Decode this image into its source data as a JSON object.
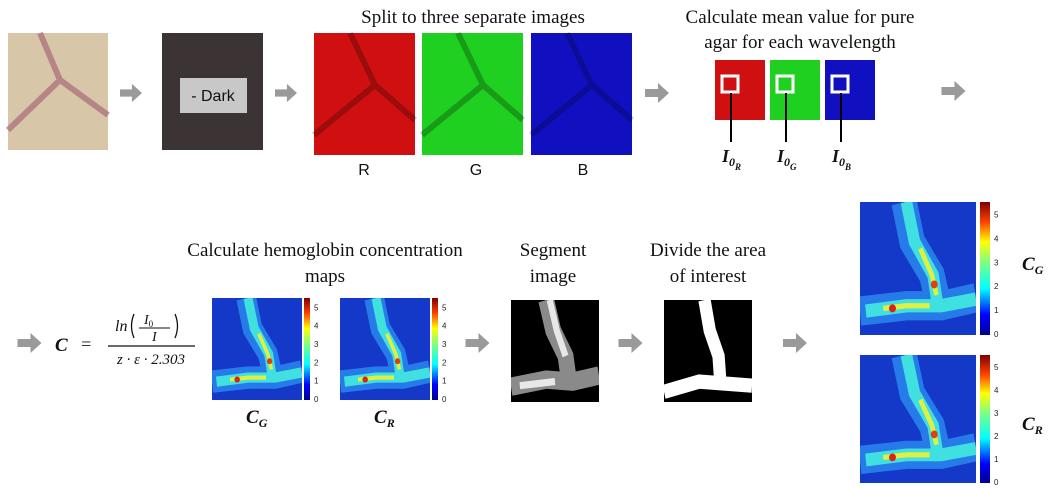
{
  "steps": {
    "dark": {
      "label": "- Dark"
    },
    "split": {
      "title": "Split to three separate images",
      "channels": [
        "R",
        "G",
        "B"
      ]
    },
    "mean": {
      "title_lines": [
        "Calculate mean value for pure",
        "agar for each wavelength"
      ],
      "labels": [
        {
          "base": "I",
          "sub": "0",
          "subsub": "R"
        },
        {
          "base": "I",
          "sub": "0",
          "subsub": "G"
        },
        {
          "base": "I",
          "sub": "0",
          "subsub": "B"
        }
      ]
    },
    "concentration": {
      "title_lines": [
        "Calculate hemoglobin concentration",
        "maps"
      ],
      "formula": {
        "lhs": "C",
        "eq": "=",
        "ln": "ln",
        "top": "I",
        "top_sub": "0",
        "bottom": "I",
        "denominator": "z · ε · 2.303"
      },
      "maps": [
        {
          "base": "C",
          "sub": "G"
        },
        {
          "base": "C",
          "sub": "R"
        }
      ],
      "colorbar_ticks": [
        0,
        1,
        2,
        3,
        4,
        5
      ]
    },
    "segment": {
      "title_lines": [
        "Segment",
        "image"
      ]
    },
    "divide": {
      "title_lines": [
        "Divide the area",
        "of interest"
      ]
    },
    "result": {
      "maps": [
        {
          "base": "C",
          "sub": "G"
        },
        {
          "base": "C",
          "sub": "R"
        }
      ]
    }
  }
}
